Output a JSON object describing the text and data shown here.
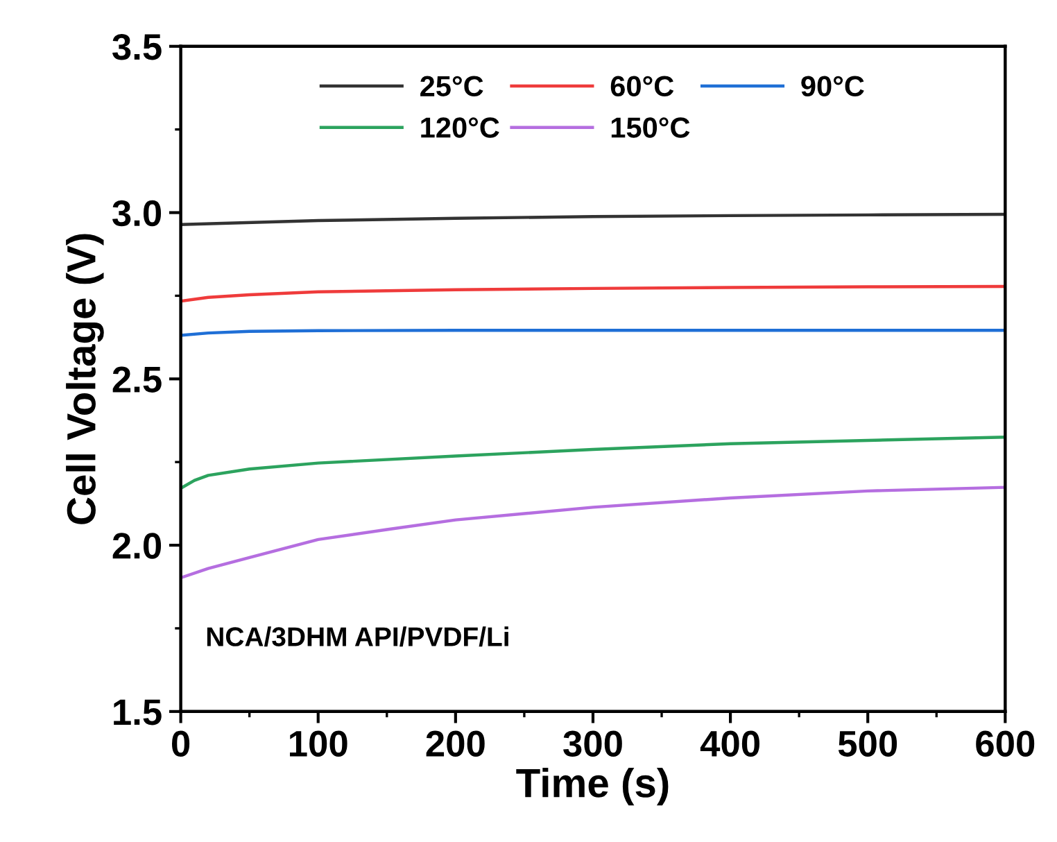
{
  "chart_data": {
    "type": "line",
    "xlabel": "Time (s)",
    "ylabel": "Cell Voltage (V)",
    "xlim": [
      0,
      600
    ],
    "xticks": [
      0,
      100,
      200,
      300,
      400,
      500,
      600
    ],
    "ylim": [
      1.5,
      3.5
    ],
    "yticks": [
      1.5,
      {
        "value": 2,
        "label": "2.0"
      },
      2.5,
      {
        "value": 3,
        "label": "3.0"
      },
      3.5
    ],
    "legend": "top",
    "grid": false,
    "marker": "none",
    "line_style": "solid",
    "annotations": [
      "NCA/3DHM API/PVDF/Li"
    ],
    "series": [
      {
        "name": "25°C",
        "color": "#333333",
        "x": [
          0,
          100,
          200,
          300,
          400,
          500,
          600
        ],
        "values": [
          2.964,
          2.976,
          2.983,
          2.988,
          2.991,
          2.993,
          2.995
        ]
      },
      {
        "name": "60°C",
        "color": "#ef3b3b",
        "x": [
          0,
          20,
          50,
          100,
          200,
          300,
          400,
          500,
          600
        ],
        "values": [
          2.734,
          2.745,
          2.753,
          2.762,
          2.768,
          2.772,
          2.775,
          2.777,
          2.778
        ]
      },
      {
        "name": "90°C",
        "color": "#1f6fd6",
        "x": [
          0,
          20,
          50,
          100,
          200,
          300,
          400,
          500,
          600
        ],
        "values": [
          2.631,
          2.638,
          2.643,
          2.645,
          2.646,
          2.646,
          2.646,
          2.646,
          2.646
        ]
      },
      {
        "name": "120°C",
        "color": "#2ca35e",
        "x": [
          0,
          10,
          20,
          50,
          100,
          200,
          300,
          400,
          500,
          600
        ],
        "values": [
          2.171,
          2.195,
          2.21,
          2.229,
          2.247,
          2.268,
          2.288,
          2.305,
          2.315,
          2.325
        ]
      },
      {
        "name": "150°C",
        "color": "#b56ee0",
        "x": [
          0,
          20,
          50,
          100,
          150,
          200,
          300,
          400,
          500,
          600
        ],
        "values": [
          1.902,
          1.93,
          1.963,
          2.017,
          2.047,
          2.076,
          2.114,
          2.142,
          2.163,
          2.174
        ]
      }
    ]
  }
}
